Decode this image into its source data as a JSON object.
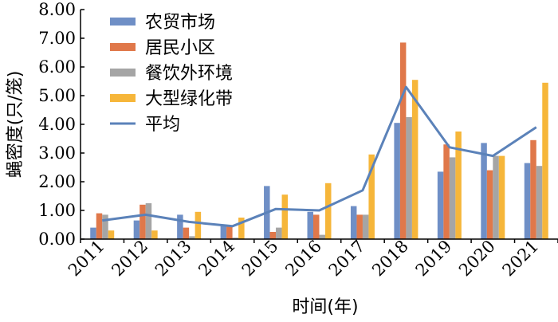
{
  "chart_data": {
    "type": "bar",
    "title": "",
    "xlabel": "时间(年)",
    "ylabel": "蝇密度(只/笼)",
    "ylim": [
      0,
      8
    ],
    "yticks": [
      "0.00",
      "1.00",
      "2.00",
      "3.00",
      "4.00",
      "5.00",
      "6.00",
      "7.00",
      "8.00"
    ],
    "categories": [
      "2011",
      "2012",
      "2013",
      "2014",
      "2015",
      "2016",
      "2017",
      "2018",
      "2019",
      "2020",
      "2021"
    ],
    "grid": false,
    "legend_position": "top-left",
    "series": [
      {
        "name": "农贸市场",
        "type": "bar",
        "color": "#6f8fc6",
        "values": [
          0.4,
          0.65,
          0.85,
          0.5,
          1.85,
          0.95,
          1.15,
          4.05,
          2.35,
          3.35,
          2.65
        ]
      },
      {
        "name": "居民小区",
        "type": "bar",
        "color": "#e0784a",
        "values": [
          0.9,
          1.2,
          0.4,
          0.45,
          0.25,
          0.85,
          0.85,
          6.85,
          3.3,
          2.4,
          3.45
        ]
      },
      {
        "name": "餐饮外环境",
        "type": "bar",
        "color": "#a5a5a5",
        "values": [
          0.85,
          1.25,
          0.1,
          0.05,
          0.4,
          0.15,
          0.85,
          4.25,
          2.85,
          2.9,
          2.55
        ]
      },
      {
        "name": "大型绿化带",
        "type": "bar",
        "color": "#f6b63a",
        "values": [
          0.3,
          0.3,
          0.95,
          0.75,
          1.55,
          1.95,
          2.95,
          5.55,
          3.75,
          2.9,
          5.45
        ]
      },
      {
        "name": "平均",
        "type": "line",
        "color": "#5b82b9",
        "values": [
          0.65,
          0.85,
          0.6,
          0.45,
          1.05,
          1.0,
          1.7,
          5.3,
          3.2,
          2.9,
          3.9
        ]
      }
    ]
  }
}
